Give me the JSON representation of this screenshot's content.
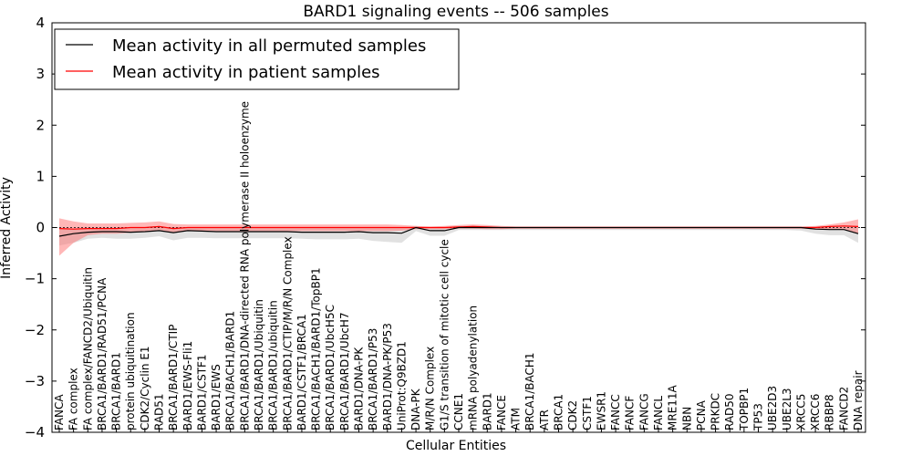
{
  "chart_data": {
    "type": "line",
    "title": "BARD1 signaling events -- 506 samples",
    "xlabel": "Cellular Entities",
    "ylabel": "Inferred Activity",
    "ylim": [
      -4,
      4
    ],
    "yticks": [
      -4,
      -3,
      -2,
      -1,
      0,
      1,
      2,
      3,
      4
    ],
    "ytick_labels": [
      "−4",
      "−3",
      "−2",
      "−1",
      "0",
      "1",
      "2",
      "3",
      "4"
    ],
    "legend_position": "top-left",
    "categories": [
      "FANCA",
      "FA complex",
      "FA complex/FANCD2/Ubiquitin",
      "BRCA1/BARD1/RAD51/PCNA",
      "BRCA1/BARD1",
      "protein ubiquitination",
      "CDK2/Cyclin E1",
      "RAD51",
      "BRCA1/BARD1/CTIP",
      "BARD1/EWS-Fli1",
      "BARD1/CSTF1",
      "BARD1/EWS",
      "BRCA1/BACH1/BARD1",
      "BRCA1/BARD1/DNA-directed RNA polymerase II holoenzyme",
      "BRCA1/BARD1/Ubiquitin",
      "BRCA1/BARD1/ubiquitin",
      "BRCA1/BARD1/CTIP/M/R/N Complex",
      "BARD1/CSTF1/BRCA1",
      "BRCA1/BACH1/BARD1/TopBP1",
      "BRCA1/BARD1/UbcH5C",
      "BRCA1/BARD1/UbcH7",
      "BARD1/DNA-PK",
      "BRCA1/BARD1/P53",
      "BARD1/DNA-PK/P53",
      "UniProt:Q9BZD1",
      "DNA-PK",
      "M/R/N Complex",
      "G1/S transition of mitotic cell cycle",
      "CCNE1",
      "mRNA polyadenylation",
      "BARD1",
      "FANCE",
      "ATM",
      "BRCA1/BACH1",
      "ATR",
      "BRCA1",
      "CDK2",
      "CSTF1",
      "EWSR1",
      "FANCC",
      "FANCF",
      "FANCG",
      "FANCL",
      "MRE11A",
      "NBN",
      "PCNA",
      "PRKDC",
      "RAD50",
      "TOPBP1",
      "TP53",
      "UBE2D3",
      "UBE2L3",
      "XRCC5",
      "XRCC6",
      "RBBP8",
      "FANCD2",
      "DNA repair"
    ],
    "series": [
      {
        "name": "Mean activity in all permuted samples",
        "color": "#000000",
        "values": [
          -0.17,
          -0.12,
          -0.09,
          -0.08,
          -0.08,
          -0.09,
          -0.08,
          -0.06,
          -0.1,
          -0.06,
          -0.07,
          -0.08,
          -0.08,
          -0.08,
          -0.08,
          -0.08,
          -0.08,
          -0.09,
          -0.09,
          -0.09,
          -0.09,
          -0.08,
          -0.1,
          -0.1,
          -0.11,
          0.0,
          -0.06,
          -0.06,
          0.0,
          0.0,
          0.0,
          0.0,
          0.0,
          0.0,
          0.0,
          0.0,
          0.0,
          0.0,
          0.0,
          0.0,
          0.0,
          0.0,
          0.0,
          0.0,
          0.0,
          0.0,
          0.0,
          0.0,
          0.0,
          0.0,
          0.0,
          0.0,
          0.0,
          -0.03,
          -0.04,
          -0.04,
          -0.12
        ],
        "band_upper": [
          0.0,
          -0.02,
          -0.01,
          -0.01,
          -0.01,
          -0.01,
          0.0,
          0.0,
          0.0,
          0.0,
          0.0,
          0.0,
          0.0,
          0.0,
          0.0,
          0.0,
          0.0,
          0.0,
          0.0,
          0.0,
          0.0,
          0.0,
          0.0,
          0.0,
          0.0,
          0.03,
          0.0,
          0.0,
          0.02,
          0.02,
          0.01,
          0.01,
          0.01,
          0.01,
          0.01,
          0.01,
          0.01,
          0.01,
          0.01,
          0.01,
          0.01,
          0.01,
          0.01,
          0.01,
          0.01,
          0.01,
          0.01,
          0.01,
          0.01,
          0.01,
          0.01,
          0.01,
          0.01,
          0.02,
          0.03,
          0.03,
          0.02
        ],
        "band_lower": [
          -0.35,
          -0.3,
          -0.22,
          -0.2,
          -0.22,
          -0.22,
          -0.2,
          -0.17,
          -0.25,
          -0.2,
          -0.2,
          -0.21,
          -0.21,
          -0.21,
          -0.21,
          -0.21,
          -0.21,
          -0.22,
          -0.23,
          -0.23,
          -0.23,
          -0.22,
          -0.26,
          -0.28,
          -0.3,
          -0.07,
          -0.16,
          -0.16,
          -0.05,
          -0.05,
          -0.05,
          -0.05,
          -0.05,
          -0.05,
          -0.05,
          -0.05,
          -0.05,
          -0.05,
          -0.05,
          -0.05,
          -0.05,
          -0.05,
          -0.05,
          -0.05,
          -0.05,
          -0.05,
          -0.05,
          -0.05,
          -0.05,
          -0.05,
          -0.05,
          -0.05,
          -0.06,
          -0.12,
          -0.15,
          -0.15,
          -0.3
        ]
      },
      {
        "name": "Mean activity in patient samples",
        "color": "#ff0000",
        "values": [
          -0.02,
          -0.03,
          -0.02,
          -0.02,
          -0.02,
          0.0,
          0.0,
          0.02,
          -0.02,
          0.0,
          0.0,
          0.0,
          0.0,
          0.0,
          0.0,
          0.0,
          0.0,
          0.0,
          0.0,
          0.0,
          0.0,
          0.0,
          0.0,
          0.0,
          0.0,
          0.0,
          0.0,
          0.0,
          0.01,
          0.02,
          0.01,
          0.0,
          0.0,
          0.0,
          0.0,
          0.0,
          0.0,
          0.0,
          0.0,
          0.0,
          0.0,
          0.0,
          0.0,
          0.0,
          0.0,
          0.0,
          0.0,
          0.0,
          0.0,
          0.0,
          0.0,
          0.0,
          0.0,
          0.0,
          0.02,
          0.03,
          0.02
        ],
        "band_upper": [
          0.18,
          0.12,
          0.08,
          0.08,
          0.08,
          0.09,
          0.1,
          0.12,
          0.07,
          0.06,
          0.06,
          0.06,
          0.06,
          0.06,
          0.06,
          0.06,
          0.06,
          0.06,
          0.06,
          0.06,
          0.06,
          0.06,
          0.06,
          0.06,
          0.05,
          0.03,
          0.02,
          0.03,
          0.05,
          0.06,
          0.05,
          0.03,
          0.02,
          0.02,
          0.02,
          0.02,
          0.02,
          0.02,
          0.02,
          0.02,
          0.02,
          0.02,
          0.02,
          0.02,
          0.02,
          0.02,
          0.02,
          0.02,
          0.02,
          0.02,
          0.02,
          0.02,
          0.02,
          0.03,
          0.06,
          0.1,
          0.16
        ],
        "band_lower": [
          -0.55,
          -0.3,
          -0.15,
          -0.12,
          -0.12,
          -0.1,
          -0.08,
          -0.05,
          -0.1,
          -0.07,
          -0.07,
          -0.07,
          -0.07,
          -0.07,
          -0.07,
          -0.07,
          -0.07,
          -0.07,
          -0.07,
          -0.07,
          -0.07,
          -0.07,
          -0.07,
          -0.07,
          -0.06,
          -0.03,
          -0.03,
          -0.03,
          -0.02,
          -0.02,
          -0.03,
          -0.03,
          -0.02,
          -0.02,
          -0.02,
          -0.02,
          -0.02,
          -0.02,
          -0.02,
          -0.02,
          -0.02,
          -0.02,
          -0.02,
          -0.02,
          -0.02,
          -0.02,
          -0.02,
          -0.02,
          -0.02,
          -0.02,
          -0.02,
          -0.02,
          -0.02,
          -0.03,
          -0.04,
          -0.05,
          -0.12
        ]
      }
    ]
  }
}
